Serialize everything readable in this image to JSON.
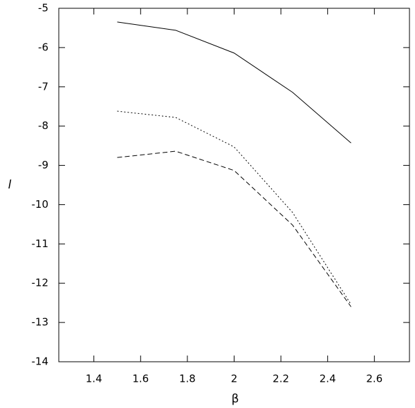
{
  "chart_data": {
    "type": "line",
    "x_label": "β",
    "y_label": "l",
    "x": [
      1.5,
      1.75,
      2.0,
      2.25,
      2.5
    ],
    "series": [
      {
        "color": "#000000",
        "style": "solid",
        "values": [
          -5.35,
          -5.56,
          -6.14,
          -7.14,
          -8.43
        ]
      },
      {
        "color": "#000000",
        "style": "dotted",
        "values": [
          -7.62,
          -7.78,
          -8.53,
          -10.2,
          -12.54
        ]
      },
      {
        "color": "#000000",
        "style": "dashed",
        "values": [
          -8.8,
          -8.64,
          -9.13,
          -10.52,
          -12.6
        ]
      }
    ],
    "xlim": [
      1.25,
      2.75
    ],
    "xticks": [
      1.4,
      1.6,
      1.8,
      2,
      2.2,
      2.4,
      2.6
    ],
    "ylim": [
      -14,
      -5
    ],
    "yticks": [
      -14,
      -13,
      -12,
      -11,
      -10,
      -9,
      -8,
      -7,
      -6,
      -5
    ],
    "grid": false
  }
}
